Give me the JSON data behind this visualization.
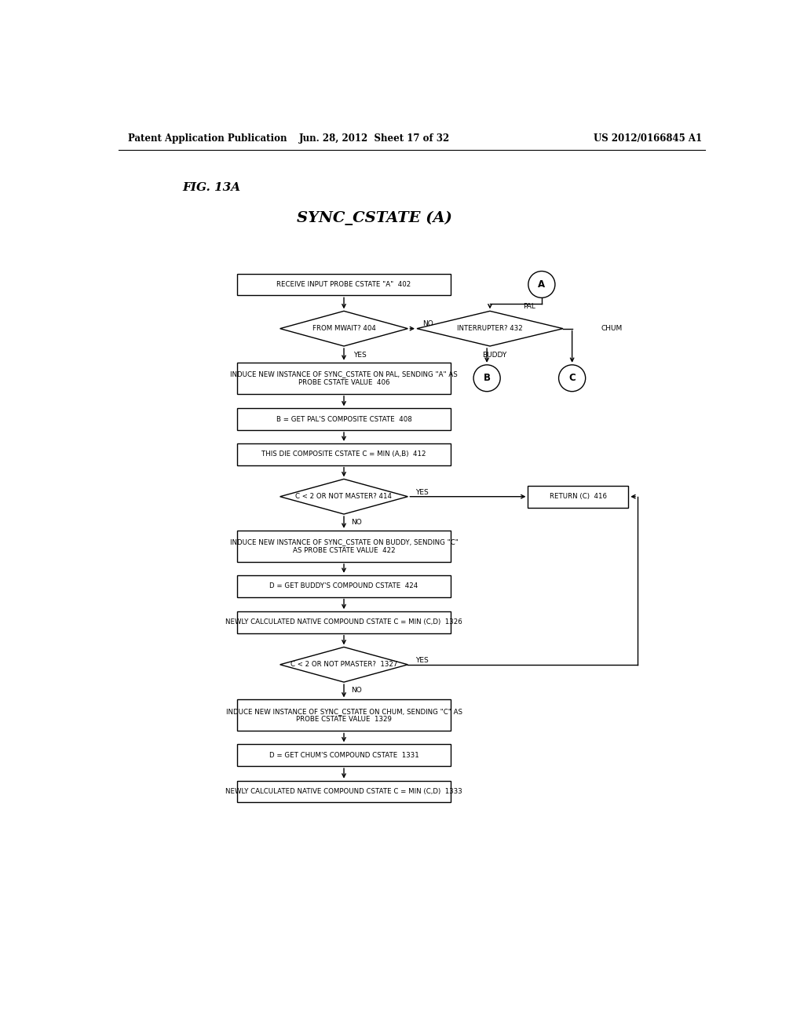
{
  "header_left": "Patent Application Publication",
  "header_mid": "Jun. 28, 2012  Sheet 17 of 32",
  "header_right": "US 2012/0166845 A1",
  "fig_label": "FIG. 13A",
  "title": "SYNC_CSTATE (A)",
  "bg_color": "#ffffff"
}
